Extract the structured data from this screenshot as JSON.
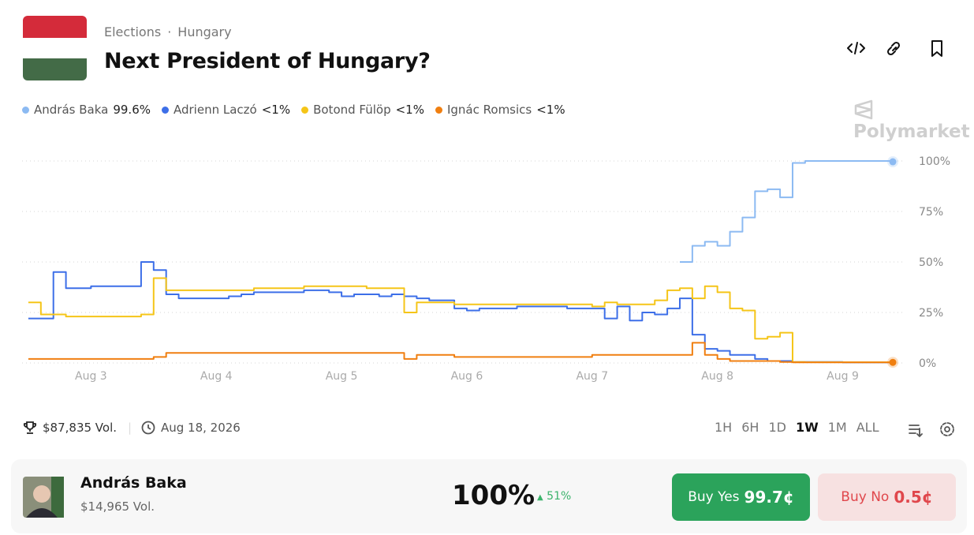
{
  "header": {
    "breadcrumb": [
      "Elections",
      "Hungary"
    ],
    "title": "Next President of Hungary?",
    "brand": "Polymarket"
  },
  "chart_data": {
    "type": "line",
    "x": [
      2.5,
      2.6,
      2.7,
      2.8,
      2.9,
      3.0,
      3.1,
      3.2,
      3.3,
      3.4,
      3.5,
      3.6,
      3.7,
      3.8,
      3.9,
      4.0,
      4.1,
      4.2,
      4.3,
      4.4,
      4.5,
      4.6,
      4.7,
      4.8,
      4.9,
      5.0,
      5.1,
      5.2,
      5.3,
      5.4,
      5.5,
      5.6,
      5.7,
      5.8,
      5.9,
      6.0,
      6.1,
      6.2,
      6.3,
      6.4,
      6.5,
      6.6,
      6.7,
      6.8,
      6.9,
      7.0,
      7.1,
      7.2,
      7.3,
      7.4,
      7.5,
      7.6,
      7.7,
      7.8,
      7.9,
      8.0,
      8.1,
      8.2,
      8.3,
      8.4,
      8.5,
      8.6,
      8.7,
      8.8,
      8.9,
      9.0,
      9.1,
      9.2,
      9.3,
      9.4
    ],
    "xlim": [
      2.45,
      9.45
    ],
    "xticks": [
      {
        "value": 3,
        "label": "Aug 3"
      },
      {
        "value": 4,
        "label": "Aug 4"
      },
      {
        "value": 5,
        "label": "Aug 5"
      },
      {
        "value": 6,
        "label": "Aug 6"
      },
      {
        "value": 7,
        "label": "Aug 7"
      },
      {
        "value": 8,
        "label": "Aug 8"
      },
      {
        "value": 9,
        "label": "Aug 9"
      }
    ],
    "ylim": [
      0,
      100
    ],
    "yticks": [
      {
        "value": 0,
        "label": "0%"
      },
      {
        "value": 25,
        "label": "25%"
      },
      {
        "value": 50,
        "label": "50%"
      },
      {
        "value": 75,
        "label": "75%"
      },
      {
        "value": 100,
        "label": "100%"
      }
    ],
    "grid": true,
    "series": [
      {
        "name": "András Baka",
        "price_label": "99.6%",
        "color": "#8cbaf2",
        "end_dot": true,
        "values": [
          null,
          null,
          null,
          null,
          null,
          null,
          null,
          null,
          null,
          null,
          null,
          null,
          null,
          null,
          null,
          null,
          null,
          null,
          null,
          null,
          null,
          null,
          null,
          null,
          null,
          null,
          null,
          null,
          null,
          null,
          null,
          null,
          null,
          null,
          null,
          null,
          null,
          null,
          null,
          null,
          null,
          null,
          null,
          null,
          null,
          null,
          null,
          null,
          null,
          null,
          null,
          null,
          50,
          58,
          60,
          58,
          65,
          72,
          85,
          86,
          82,
          99,
          100,
          100,
          100,
          100,
          100,
          100,
          100,
          99.6
        ]
      },
      {
        "name": "Adrienn Laczó",
        "price_label": "<1%",
        "color": "#3d6fe8",
        "end_dot": false,
        "values": [
          22,
          22,
          45,
          37,
          37,
          38,
          38,
          38,
          38,
          50,
          46,
          34,
          32,
          32,
          32,
          32,
          33,
          34,
          35,
          35,
          35,
          35,
          36,
          36,
          35,
          33,
          34,
          34,
          33,
          34,
          33,
          32,
          31,
          31,
          27,
          26,
          27,
          27,
          27,
          28,
          28,
          28,
          28,
          27,
          27,
          27,
          22,
          28,
          21,
          25,
          24,
          27,
          32,
          14,
          7,
          6,
          4,
          4,
          2,
          1,
          1,
          0.5,
          0.5,
          0.5,
          0.5,
          0.3,
          0.3,
          0.3,
          0.3,
          0.3
        ]
      },
      {
        "name": "Botond Fülöp",
        "price_label": "<1%",
        "color": "#f5c518",
        "end_dot": false,
        "values": [
          30,
          24,
          24,
          23,
          23,
          23,
          23,
          23,
          23,
          24,
          42,
          36,
          36,
          36,
          36,
          36,
          36,
          36,
          37,
          37,
          37,
          37,
          38,
          38,
          38,
          38,
          38,
          37,
          37,
          37,
          25,
          30,
          30,
          30,
          29,
          29,
          29,
          29,
          29,
          29,
          29,
          29,
          29,
          29,
          29,
          28,
          30,
          29,
          29,
          29,
          31,
          36,
          37,
          32,
          38,
          35,
          27,
          26,
          12,
          13,
          15,
          0.5,
          0.4,
          0.4,
          0.4,
          0.4,
          0.4,
          0.4,
          0.4,
          0.4
        ]
      },
      {
        "name": "Ignác Romsics",
        "price_label": "<1%",
        "color": "#f07f10",
        "end_dot": true,
        "values": [
          2,
          2,
          2,
          2,
          2,
          2,
          2,
          2,
          2,
          2,
          3,
          5,
          5,
          5,
          5,
          5,
          5,
          5,
          5,
          5,
          5,
          5,
          5,
          5,
          5,
          5,
          5,
          5,
          5,
          5,
          2,
          4,
          4,
          4,
          3,
          3,
          3,
          3,
          3,
          3,
          3,
          3,
          3,
          3,
          3,
          4,
          4,
          4,
          4,
          4,
          4,
          4,
          4,
          10,
          4,
          2,
          1,
          1,
          1,
          1,
          0.5,
          0.3,
          0.3,
          0.3,
          0.3,
          0.3,
          0.3,
          0.3,
          0.3,
          0.3
        ]
      }
    ]
  },
  "stats": {
    "volume": "$87,835 Vol.",
    "end_date": "Aug 18, 2026"
  },
  "ranges": [
    "1H",
    "6H",
    "1D",
    "1W",
    "1M",
    "ALL"
  ],
  "active_range": 3,
  "outcome": {
    "name": "András Baka",
    "volume": "$14,965 Vol.",
    "chance": "100%",
    "change": "51%",
    "buy_yes": "Buy Yes",
    "yes_price": "99.7¢",
    "buy_no": "Buy No",
    "no_price": "0.5¢"
  }
}
